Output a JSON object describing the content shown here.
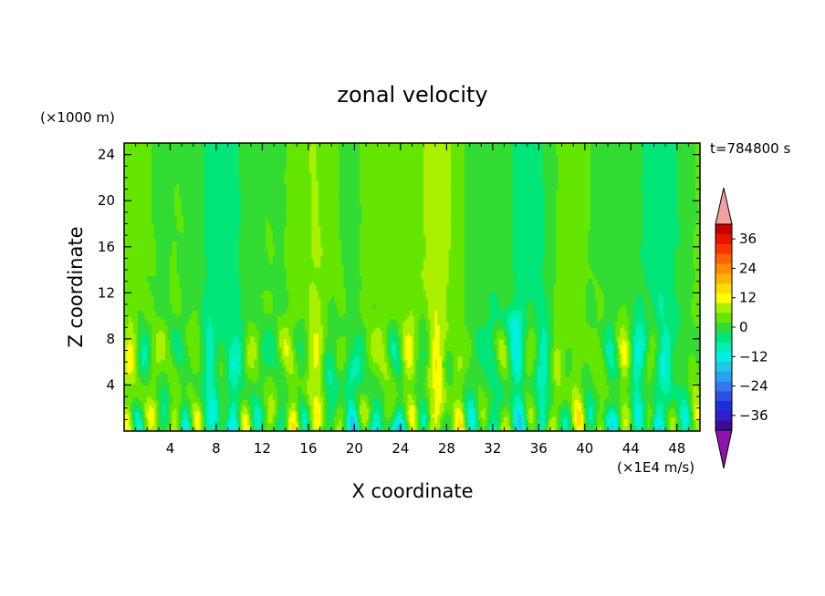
{
  "chart_data": {
    "type": "heatmap",
    "title": "zonal velocity",
    "xlabel": "X coordinate",
    "ylabel": "Z coordinate",
    "y_unit": "(×1000 m)",
    "colorbar_unit": "(×1E4 m/s)",
    "time_label": "t=784800 s",
    "xlim": [
      0,
      50
    ],
    "ylim": [
      0,
      25
    ],
    "x_ticks": [
      4,
      8,
      12,
      16,
      20,
      24,
      28,
      32,
      36,
      40,
      44,
      48
    ],
    "x_tick_labels": [
      "4",
      "8",
      "12",
      "16",
      "20",
      "24",
      "28",
      "32",
      "36",
      "40",
      "44",
      "48"
    ],
    "y_ticks": [
      4,
      8,
      12,
      16,
      20,
      24
    ],
    "y_tick_labels": [
      "4",
      "8",
      "12",
      "16",
      "20",
      "24"
    ],
    "colorbar": {
      "range": [
        -42,
        42
      ],
      "step": 4,
      "extend": "both",
      "tick_values": [
        -36,
        -24,
        -12,
        0,
        12,
        24,
        36
      ],
      "tick_labels": [
        "−36",
        "−24",
        "−12",
        "0",
        "12",
        "24",
        "36"
      ],
      "colors": [
        "#3c0a96",
        "#321ec8",
        "#1c2edc",
        "#2850e6",
        "#3278f0",
        "#28a0f0",
        "#1ec8e6",
        "#00f0e6",
        "#00f0b4",
        "#00e678",
        "#32dc32",
        "#64e600",
        "#aaf000",
        "#ffff00",
        "#ffdc00",
        "#ffb400",
        "#ff8c00",
        "#ff6400",
        "#ff3200",
        "#e61400",
        "#c80000"
      ],
      "under_color": "#8c14aa",
      "over_color": "#f5a0a0"
    }
  }
}
